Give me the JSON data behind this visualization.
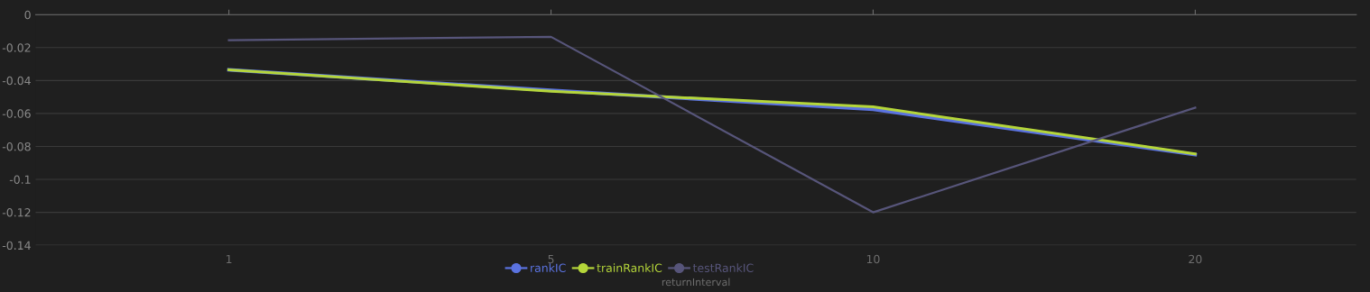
{
  "chart_data": {
    "type": "line",
    "xlabel": "returnInterval",
    "categories": [
      "1",
      "5",
      "10",
      "20"
    ],
    "series": [
      {
        "name": "rankIC",
        "color": "#5b73e0",
        "values": [
          -0.0335,
          -0.046,
          -0.0575,
          -0.085
        ]
      },
      {
        "name": "trainRankIC",
        "color": "#b5d63a",
        "values": [
          -0.0335,
          -0.0465,
          -0.056,
          -0.0845
        ]
      },
      {
        "name": "testRankIC",
        "color": "#57557a",
        "values": [
          -0.0155,
          -0.0135,
          -0.12,
          -0.0565
        ]
      }
    ],
    "ylim": [
      -0.14,
      0
    ],
    "yticks": [
      -0.14,
      -0.12,
      -0.1,
      -0.08,
      -0.06,
      -0.04,
      -0.02,
      0
    ],
    "grid": "y",
    "legend": "bottom",
    "marker": "none",
    "line_style": "solid"
  }
}
